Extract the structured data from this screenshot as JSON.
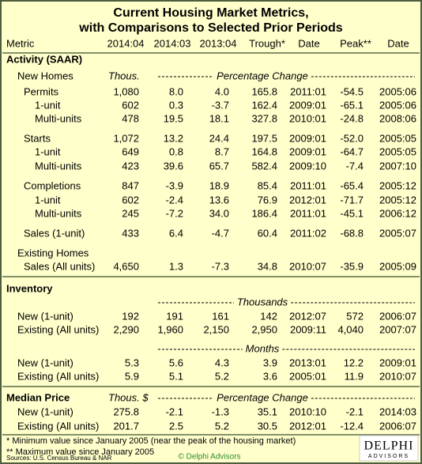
{
  "title": [
    "Current Housing Market Metrics,",
    "with Comparisons to Selected Prior Periods"
  ],
  "header": [
    "Metric",
    "2014:04",
    "2014:03",
    "2013:04",
    "Trough*",
    "Date",
    "Peak**",
    "Date"
  ],
  "table": {
    "rows": [
      {
        "label": "Activity (SAAR)"
      },
      {
        "label": "New Homes",
        "unit": "Thous.",
        "span": "Percentage Change"
      },
      {
        "cells": [
          "Permits",
          "1,080",
          "8.0",
          "4.0",
          "165.8",
          "2011:01",
          "-54.5",
          "2005:06"
        ]
      },
      {
        "cells": [
          "1-unit",
          "602",
          "0.3",
          "-3.7",
          "162.4",
          "2009:01",
          "-65.1",
          "2005:06"
        ]
      },
      {
        "cells": [
          "Multi-units",
          "478",
          "19.5",
          "18.1",
          "327.8",
          "2010:01",
          "-24.8",
          "2008:06"
        ]
      },
      {
        "cells": [
          "Starts",
          "1,072",
          "13.2",
          "24.4",
          "197.5",
          "2009:01",
          "-52.0",
          "2005:05"
        ]
      },
      {
        "cells": [
          "1-unit",
          "649",
          "0.8",
          "8.7",
          "164.8",
          "2009:01",
          "-64.7",
          "2005:05"
        ]
      },
      {
        "cells": [
          "Multi-units",
          "423",
          "39.6",
          "65.7",
          "582.4",
          "2009:10",
          "-7.4",
          "2007:10"
        ]
      },
      {
        "cells": [
          "Completions",
          "847",
          "-3.9",
          "18.9",
          "85.4",
          "2011:01",
          "-65.4",
          "2005:12"
        ]
      },
      {
        "cells": [
          "1-unit",
          "602",
          "-2.4",
          "13.6",
          "76.9",
          "2012:01",
          "-71.7",
          "2005:12"
        ]
      },
      {
        "cells": [
          "Multi-units",
          "245",
          "-7.2",
          "34.0",
          "186.4",
          "2011:01",
          "-45.1",
          "2006:12"
        ]
      },
      {
        "cells": [
          "Sales (1-unit)",
          "433",
          "6.4",
          "-4.7",
          "60.4",
          "2011:02",
          "-68.8",
          "2005:07"
        ]
      },
      {
        "label": "Existing Homes"
      },
      {
        "cells": [
          "Sales (All units)",
          "4,650",
          "1.3",
          "-7.3",
          "34.8",
          "2010:07",
          "-35.9",
          "2005:09"
        ]
      },
      {
        "label": "Inventory"
      },
      {
        "span": "Thousands"
      },
      {
        "cells": [
          "New (1-unit)",
          "192",
          "191",
          "161",
          "142",
          "2012:07",
          "572",
          "2006:07"
        ]
      },
      {
        "cells": [
          "Existing (All units)",
          "2,290",
          "1,960",
          "2,150",
          "2,950",
          "2009:11",
          "4,040",
          "2007:07"
        ]
      },
      {
        "span": "Months"
      },
      {
        "cells": [
          "New (1-unit)",
          "5.3",
          "5.6",
          "4.3",
          "3.9",
          "2013:01",
          "12.2",
          "2009:01"
        ]
      },
      {
        "cells": [
          "Existing (All units)",
          "5.9",
          "5.1",
          "5.2",
          "3.6",
          "2005:01",
          "11.9",
          "2010:07"
        ]
      },
      {
        "label": "Median Price",
        "unit": "Thous. $",
        "span": "Percentage Change"
      },
      {
        "cells": [
          "New (1-unit)",
          "275.8",
          "-2.1",
          "-1.3",
          "35.1",
          "2010:10",
          "-2.1",
          "2014:03"
        ]
      },
      {
        "cells": [
          "Existing (All units)",
          "201.7",
          "2.5",
          "5.2",
          "30.5",
          "2012:01",
          "-12.4",
          "2006:07"
        ]
      }
    ]
  },
  "footnotes": [
    "*  Minimum value since January 2005 (near the peak of the housing market)",
    "** Maximum value since January 2005"
  ],
  "sources": "Sources: U.S. Census Bureau & NAR",
  "credit": "© Delphi Advisors",
  "logo": {
    "name": "DELPHI",
    "sub": "ADVISORS"
  }
}
